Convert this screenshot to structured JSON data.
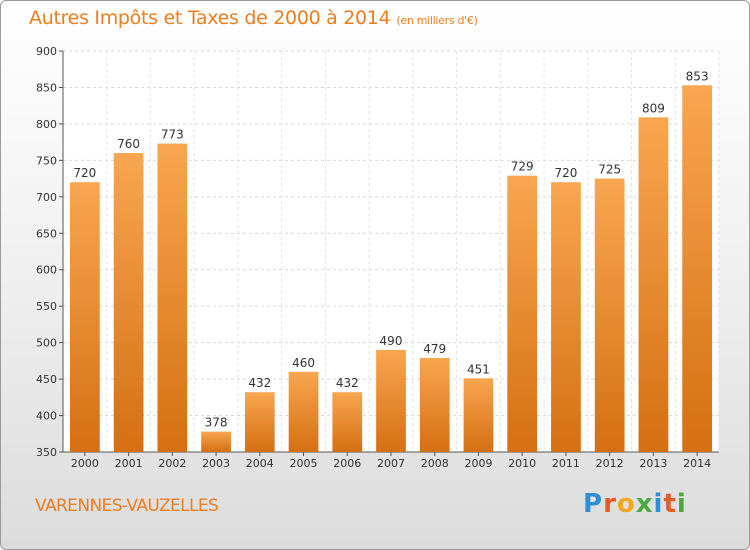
{
  "header": {
    "title": "Autres Impôts et Taxes de 2000 à 2014",
    "unit": "(en milliers d'€)"
  },
  "footer": {
    "city": "VARENNES-VAUZELLES",
    "logo_letters": [
      "P",
      "r",
      "o",
      "x",
      "i",
      "t",
      "i"
    ],
    "logo_colors": [
      "#2f8fd6",
      "#e65a2a",
      "#f1a61b",
      "#4aa83e",
      "#2f8fd6",
      "#e65a2a",
      "#4aa83e"
    ]
  },
  "colors": {
    "bar_light": "#f8a650",
    "bar_dark": "#d56f12",
    "title": "#ee7d1e"
  },
  "chart_data": {
    "type": "bar",
    "categories": [
      "2000",
      "2001",
      "2002",
      "2003",
      "2004",
      "2005",
      "2006",
      "2007",
      "2008",
      "2009",
      "2010",
      "2011",
      "2012",
      "2013",
      "2014"
    ],
    "values": [
      720,
      760,
      773,
      378,
      432,
      460,
      432,
      490,
      479,
      451,
      729,
      720,
      725,
      809,
      853
    ],
    "title": "Autres Impôts et Taxes de 2000 à 2014",
    "xlabel": "",
    "ylabel": "",
    "ylim": [
      350,
      900
    ],
    "yticks": [
      350,
      400,
      450,
      500,
      550,
      600,
      650,
      700,
      750,
      800,
      850,
      900
    ],
    "grid": true,
    "data_labels": true
  }
}
